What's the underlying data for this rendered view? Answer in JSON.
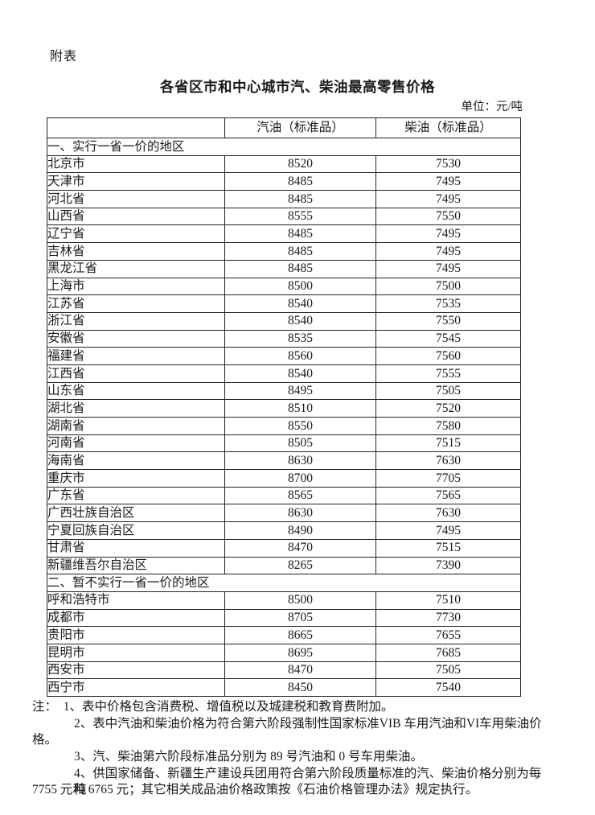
{
  "page": {
    "appendix_label": "附表",
    "title": "各省区市和中心城市汽、柴油最高零售价格",
    "unit_label": "单位：元/吨"
  },
  "table": {
    "columns": [
      "",
      "汽油（标准品）",
      "柴油（标准品）"
    ],
    "sections": [
      {
        "header": "一、实行一省一价的地区",
        "rows": [
          [
            "北京市",
            "8520",
            "7530"
          ],
          [
            "天津市",
            "8485",
            "7495"
          ],
          [
            "河北省",
            "8485",
            "7495"
          ],
          [
            "山西省",
            "8555",
            "7550"
          ],
          [
            "辽宁省",
            "8485",
            "7495"
          ],
          [
            "吉林省",
            "8485",
            "7495"
          ],
          [
            "黑龙江省",
            "8485",
            "7495"
          ],
          [
            "上海市",
            "8500",
            "7500"
          ],
          [
            "江苏省",
            "8540",
            "7535"
          ],
          [
            "浙江省",
            "8540",
            "7550"
          ],
          [
            "安徽省",
            "8535",
            "7545"
          ],
          [
            "福建省",
            "8560",
            "7560"
          ],
          [
            "江西省",
            "8540",
            "7555"
          ],
          [
            "山东省",
            "8495",
            "7505"
          ],
          [
            "湖北省",
            "8510",
            "7520"
          ],
          [
            "湖南省",
            "8550",
            "7580"
          ],
          [
            "河南省",
            "8505",
            "7515"
          ],
          [
            "海南省",
            "8630",
            "7630"
          ],
          [
            "重庆市",
            "8700",
            "7705"
          ],
          [
            "广东省",
            "8565",
            "7565"
          ],
          [
            "广西壮族自治区",
            "8630",
            "7630"
          ],
          [
            "宁夏回族自治区",
            "8490",
            "7495"
          ],
          [
            "甘肃省",
            "8470",
            "7515"
          ],
          [
            "新疆维吾尔自治区",
            "8265",
            "7390"
          ]
        ]
      },
      {
        "header": "二、暂不实行一省一价的地区",
        "rows": [
          [
            "呼和浩特市",
            "8500",
            "7510"
          ],
          [
            "成都市",
            "8705",
            "7730"
          ],
          [
            "贵阳市",
            "8665",
            "7655"
          ],
          [
            "昆明市",
            "8695",
            "7685"
          ],
          [
            "西安市",
            "8470",
            "7505"
          ],
          [
            "西宁市",
            "8450",
            "7540"
          ]
        ]
      }
    ]
  },
  "notes": {
    "lines": [
      {
        "indented": false,
        "text": "注：  1、表中价格包含消费税、增值税以及城建税和教育费附加。"
      },
      {
        "indented": true,
        "text": "2、表中汽油和柴油价格为符合第六阶段强制性国家标准VIB 车用汽油和VI车用柴油价"
      },
      {
        "indented": false,
        "text": "格。"
      },
      {
        "indented": true,
        "text": "3、汽、柴油第六阶段标准品分别为 89 号汽油和 0 号车用柴油。"
      },
      {
        "indented": true,
        "text": "4、供国家储备、新疆生产建设兵团用符合第六阶段质量标准的汽、柴油价格分别为每吨"
      },
      {
        "indented": false,
        "text": "7755 元和 6765 元；其它相关成品油价格政策按《石油价格管理办法》规定执行。"
      }
    ]
  }
}
